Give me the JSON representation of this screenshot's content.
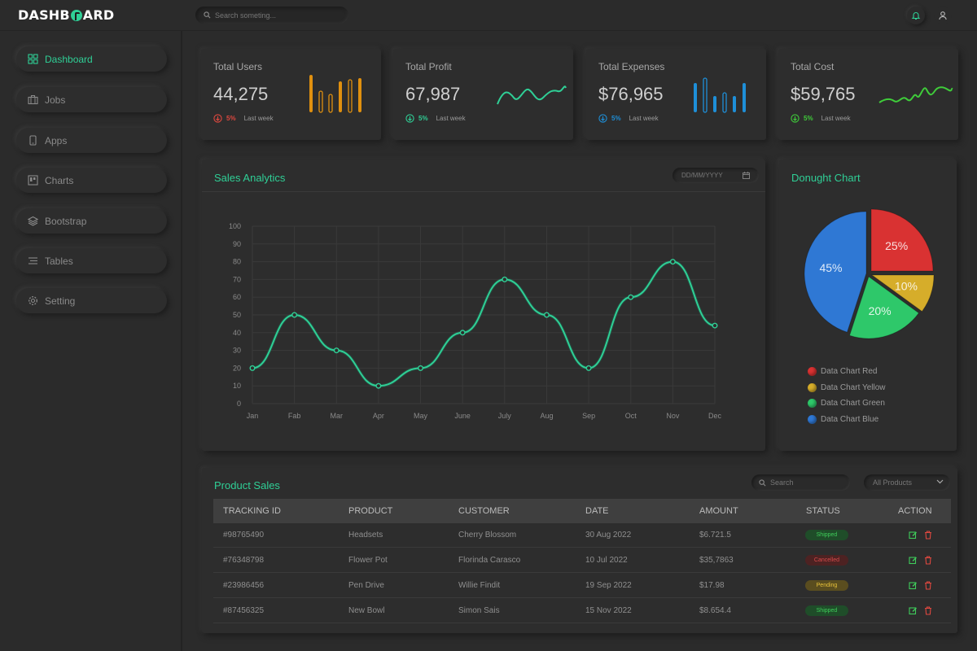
{
  "app": {
    "logo_left": "DASHB",
    "logo_right": "ARD"
  },
  "search": {
    "placeholder": "Search someting..."
  },
  "sidebar": {
    "items": [
      {
        "label": "Dashboard",
        "icon": "grid-icon"
      },
      {
        "label": "Jobs",
        "icon": "briefcase-icon"
      },
      {
        "label": "Apps",
        "icon": "phone-icon"
      },
      {
        "label": "Charts",
        "icon": "chart-board-icon"
      },
      {
        "label": "Bootstrap",
        "icon": "layers-icon"
      },
      {
        "label": "Tables",
        "icon": "lines-icon"
      },
      {
        "label": "Setting",
        "icon": "gear-icon"
      }
    ]
  },
  "stats": [
    {
      "title": "Total Users",
      "value": "44,275",
      "pct": "5%",
      "note": "Last week",
      "trend": "down",
      "color": "#e0900f"
    },
    {
      "title": "Total Profit",
      "value": "67,987",
      "pct": "5%",
      "note": "Last week",
      "trend": "down",
      "color": "#2fcf96"
    },
    {
      "title": "Total Expenses",
      "value": "$76,965",
      "pct": "5%",
      "note": "Last week",
      "trend": "down",
      "color": "#1e8fd8"
    },
    {
      "title": "Total Cost",
      "value": "$59,765",
      "pct": "5%",
      "note": "Last week",
      "trend": "down",
      "color": "#3fcc3a"
    }
  ],
  "sales": {
    "title": "Sales Analytics",
    "date_placeholder": "DD/MM/YYYY"
  },
  "donut": {
    "title": "Donught Chart"
  },
  "chart_data": [
    {
      "type": "line",
      "title": "Sales Analytics",
      "categories": [
        "Jan",
        "Fab",
        "Mar",
        "Apr",
        "May",
        "June",
        "July",
        "Aug",
        "Sep",
        "Oct",
        "Nov",
        "Dec"
      ],
      "values": [
        20,
        50,
        30,
        10,
        20,
        40,
        70,
        50,
        20,
        60,
        80,
        44
      ],
      "ylim": [
        0,
        100
      ],
      "yticks": [
        0,
        10,
        20,
        30,
        40,
        50,
        60,
        70,
        80,
        90,
        100
      ],
      "grid": true,
      "color": "#2fcf96"
    },
    {
      "type": "pie",
      "title": "Donught Chart",
      "slices": [
        {
          "name": "Data Chart Red",
          "value": 25,
          "label": "25%",
          "color": "#d93232"
        },
        {
          "name": "Data Chart Yellow",
          "value": 10,
          "label": "10%",
          "color": "#d6ad2a"
        },
        {
          "name": "Data Chart Green",
          "value": 20,
          "label": "20%",
          "color": "#2ec86a"
        },
        {
          "name": "Data Chart Blue",
          "value": 45,
          "label": "45%",
          "color": "#2f78d4"
        }
      ],
      "legend": "bottom"
    }
  ],
  "products": {
    "title": "Product Sales",
    "search_placeholder": "Search",
    "filter": "All Products",
    "columns": [
      "TRACKING ID",
      "PRODUCT",
      "CUSTOMER",
      "DATE",
      "AMOUNT",
      "STATUS",
      "ACTION"
    ],
    "rows": [
      {
        "id": "#98765490",
        "product": "Headsets",
        "customer": "Cherry Blossom",
        "date": "30 Aug 2022",
        "amount": "$6.721.5",
        "status": "Shipped",
        "cls": "b-shipped"
      },
      {
        "id": "#76348798",
        "product": "Flower Pot",
        "customer": "Florinda Carasco",
        "date": "10 Jul 2022",
        "amount": "$35,7863",
        "status": "Cancelled",
        "cls": "b-cancelled"
      },
      {
        "id": "#23986456",
        "product": "Pen Drive",
        "customer": "Willie Findit",
        "date": "19 Sep 2022",
        "amount": "$17.98",
        "status": "Pending",
        "cls": "b-pending"
      },
      {
        "id": "#87456325",
        "product": "New Bowl",
        "customer": "Simon Sais",
        "date": "15 Nov 2022",
        "amount": "$8.654.4",
        "status": "Shipped",
        "cls": "b-shipped"
      }
    ]
  },
  "colors": {
    "accent": "#2fcf96",
    "down": "#e0483f",
    "up": "#2fcf96",
    "info": "#1e8fd8"
  }
}
